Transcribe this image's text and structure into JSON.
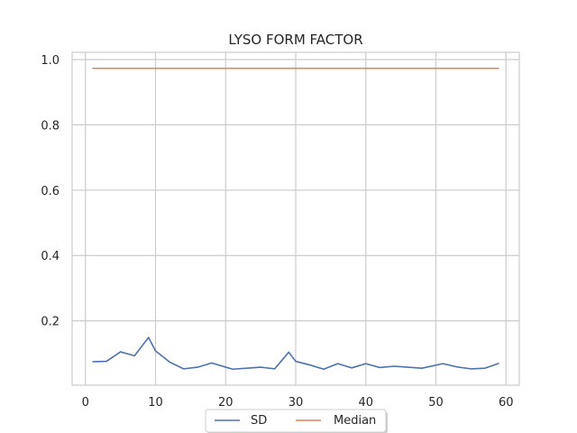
{
  "chart_data": {
    "type": "line",
    "title": "LYSO FORM FACTOR",
    "xlabel": "",
    "ylabel": "",
    "xlim": [
      -1.9,
      61.9
    ],
    "ylim": [
      0.003,
      1.022
    ],
    "xticks": [
      0,
      10,
      20,
      30,
      40,
      50,
      60
    ],
    "yticks": [
      0.2,
      0.4,
      0.6,
      0.8,
      1.0
    ],
    "ytick_labels": [
      "0.2",
      "0.4",
      "0.6",
      "0.8",
      "1.0"
    ],
    "grid": true,
    "legend_position": "bottom-center",
    "series": [
      {
        "name": "SD",
        "color": "#4C72B0",
        "x": [
          1,
          3,
          5,
          7,
          9,
          10,
          12,
          14,
          16,
          18,
          21,
          23,
          25,
          27,
          29,
          30,
          32,
          34,
          36,
          38,
          40,
          42,
          44,
          46,
          48,
          51,
          53,
          55,
          57,
          59
        ],
        "y": [
          0.075,
          0.076,
          0.105,
          0.093,
          0.149,
          0.108,
          0.074,
          0.053,
          0.058,
          0.071,
          0.052,
          0.055,
          0.058,
          0.053,
          0.104,
          0.076,
          0.065,
          0.052,
          0.069,
          0.056,
          0.069,
          0.057,
          0.061,
          0.058,
          0.055,
          0.069,
          0.059,
          0.053,
          0.055,
          0.07
        ]
      },
      {
        "name": "Median",
        "color": "#DD8452",
        "x": [
          1,
          59
        ],
        "y": [
          0.973,
          0.973
        ]
      }
    ]
  }
}
